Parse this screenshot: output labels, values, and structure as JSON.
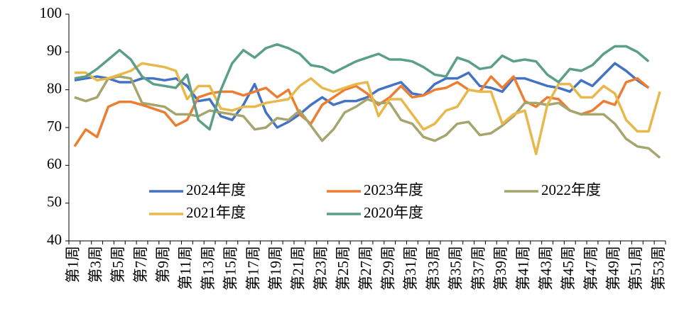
{
  "chart_data": {
    "type": "line",
    "categories": [
      "第1周",
      null,
      "第3周",
      null,
      "第5周",
      null,
      "第7周",
      null,
      "第9周",
      null,
      "第11周",
      null,
      "第13周",
      null,
      "第15周",
      null,
      "第17周",
      null,
      "第19周",
      null,
      "第21周",
      null,
      "第23周",
      null,
      "第25周",
      null,
      "第27周",
      null,
      "第29周",
      null,
      "第31周",
      null,
      "第33周",
      null,
      "第35周",
      null,
      "第37周",
      null,
      "第39周",
      null,
      "第41周",
      null,
      "第43周",
      null,
      "第45周",
      null,
      "第47周",
      null,
      "第49周",
      null,
      "第51周",
      null,
      "第53周"
    ],
    "series": [
      {
        "name": "2024年度",
        "color": "#4472c4",
        "values": [
          82.5,
          83,
          83.5,
          83,
          82,
          82,
          83,
          83,
          82.5,
          83,
          81,
          77,
          77.5,
          73,
          72,
          76,
          81.5,
          74,
          70,
          71.5,
          73.5,
          76,
          78,
          76,
          77,
          77,
          78,
          80,
          81,
          82,
          79,
          78.5,
          81.5,
          83,
          83,
          84.5,
          81,
          80.5,
          79.5,
          83,
          83,
          82,
          81,
          80.5,
          79.5,
          82.5,
          81,
          84,
          87,
          85,
          82.5,
          80.5,
          null
        ]
      },
      {
        "name": "2023年度",
        "color": "#ed7d31",
        "values": [
          65,
          69.5,
          67.5,
          75.5,
          76.8,
          76.8,
          76,
          75,
          74,
          70.5,
          72,
          78,
          79,
          79.5,
          79.5,
          78.5,
          79.5,
          80.5,
          78,
          80,
          73.5,
          71,
          76,
          78,
          80,
          81,
          79,
          76,
          78,
          81,
          78,
          78.5,
          80,
          80.5,
          82,
          80,
          79.5,
          83.5,
          80.5,
          83.5,
          77,
          75.5,
          78,
          77.5,
          74.5,
          73.5,
          74.5,
          77,
          76,
          82,
          83,
          80.5,
          null
        ]
      },
      {
        "name": "2022年度",
        "color": "#a5a56e",
        "values": [
          78,
          77,
          78,
          83,
          83.5,
          83,
          76.5,
          76,
          75.5,
          73.5,
          73.5,
          73,
          74.5,
          74,
          73.5,
          73,
          69.5,
          70,
          72.5,
          72,
          74.5,
          70.5,
          66.5,
          69.5,
          74,
          75.5,
          77.5,
          76.5,
          76.5,
          72,
          71,
          67.5,
          66.5,
          68,
          71,
          71.5,
          68,
          68.5,
          70.5,
          73,
          76.5,
          76.5,
          76,
          76.5,
          74.5,
          73.5,
          73.5,
          73.5,
          71,
          67,
          65,
          64.5,
          62
        ]
      },
      {
        "name": "2021年度",
        "color": "#e8b84a",
        "values": [
          84.5,
          84.5,
          82.5,
          83,
          84,
          85,
          87,
          86.5,
          86,
          85,
          77.5,
          81,
          81,
          75,
          74.5,
          75.5,
          75.5,
          76.5,
          77,
          77.5,
          81,
          83,
          80.5,
          79.5,
          80.5,
          81.5,
          82,
          73,
          77.5,
          77.5,
          73.5,
          69.5,
          71,
          74.5,
          75.5,
          80,
          79.5,
          79.5,
          71,
          73.5,
          74.5,
          63,
          76,
          81.5,
          81.5,
          78,
          78,
          81,
          79,
          72,
          69,
          69,
          79.5
        ]
      },
      {
        "name": "2020年度",
        "color": "#5b9e8a",
        "values": [
          83,
          83.5,
          85.5,
          88,
          90.5,
          88,
          83.5,
          81.5,
          81,
          80.5,
          84,
          72,
          69.5,
          80,
          87,
          90.5,
          88.5,
          91,
          92,
          91,
          89.5,
          86.5,
          86,
          84.5,
          86,
          87.5,
          88.5,
          89.5,
          88,
          88,
          87.5,
          86,
          84,
          83.5,
          88.5,
          87.5,
          85.5,
          86,
          89,
          87.5,
          88,
          87.5,
          84,
          82,
          85.5,
          85,
          86.5,
          89.5,
          91.5,
          91.5,
          90,
          87.5,
          null
        ]
      }
    ],
    "ylim": [
      40,
      100
    ],
    "yticks": [
      40,
      50,
      60,
      70,
      80,
      90,
      100
    ],
    "grid": false
  }
}
